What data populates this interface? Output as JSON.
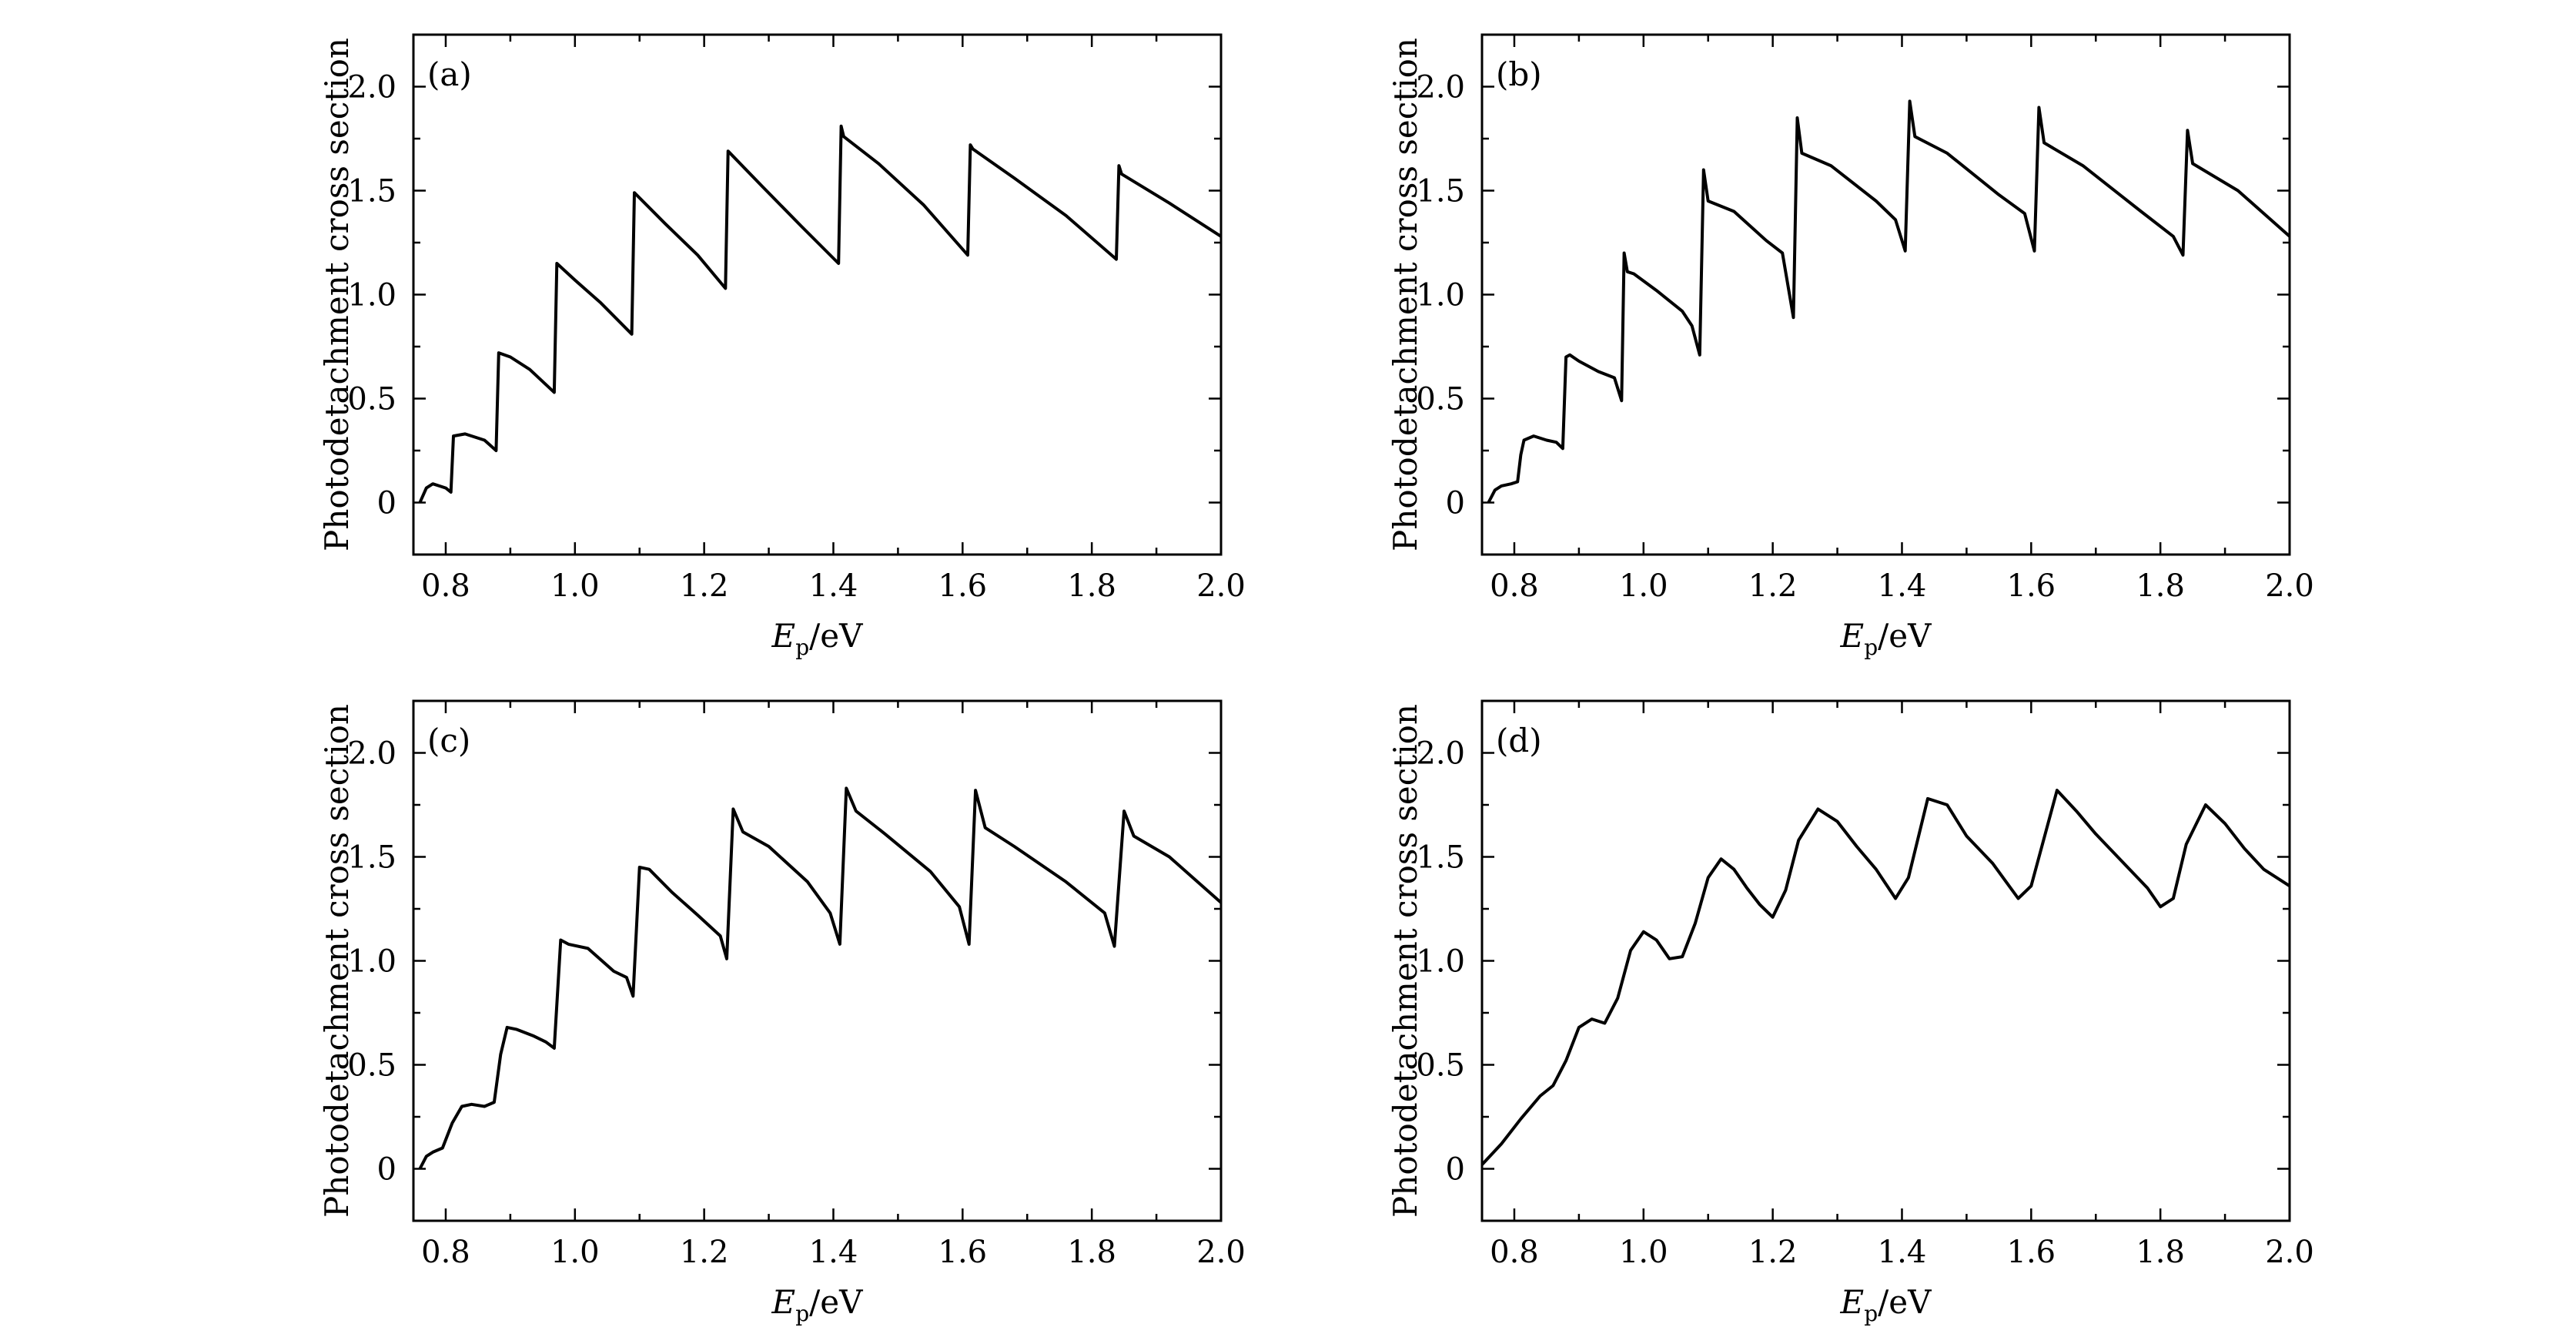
{
  "figure": {
    "ylabel": "Photodetachment cross section",
    "xlabel_main": "E",
    "xlabel_sub": "p",
    "xlabel_unit": "/eV"
  },
  "chart_data": [
    {
      "type": "line",
      "panel_label": "(a)",
      "xlim": [
        0.75,
        2.0
      ],
      "ylim": [
        -0.25,
        2.25
      ],
      "xticks": [
        "0.8",
        "1.0",
        "1.2",
        "1.4",
        "1.6",
        "1.8",
        "2.0"
      ],
      "yticks": [
        "0",
        "0.5",
        "1.0",
        "1.5",
        "2.0"
      ],
      "series": [
        {
          "name": "(a)",
          "x": [
            0.76,
            0.77,
            0.78,
            0.79,
            0.8,
            0.808,
            0.812,
            0.83,
            0.86,
            0.878,
            0.882,
            0.9,
            0.93,
            0.968,
            0.972,
            1.0,
            1.04,
            1.088,
            1.092,
            1.14,
            1.19,
            1.233,
            1.237,
            1.29,
            1.35,
            1.408,
            1.412,
            1.416,
            1.47,
            1.54,
            1.608,
            1.612,
            1.616,
            1.68,
            1.76,
            1.838,
            1.842,
            1.846,
            1.92,
            2.0
          ],
          "y": [
            0.0,
            0.07,
            0.09,
            0.08,
            0.07,
            0.05,
            0.32,
            0.33,
            0.3,
            0.25,
            0.72,
            0.7,
            0.64,
            0.53,
            1.15,
            1.07,
            0.96,
            0.81,
            1.49,
            1.34,
            1.19,
            1.03,
            1.69,
            1.52,
            1.33,
            1.15,
            1.81,
            1.76,
            1.63,
            1.43,
            1.19,
            1.72,
            1.7,
            1.56,
            1.38,
            1.17,
            1.62,
            1.58,
            1.44,
            1.28
          ]
        }
      ]
    },
    {
      "type": "line",
      "panel_label": "(b)",
      "xlim": [
        0.75,
        2.0
      ],
      "ylim": [
        -0.25,
        2.25
      ],
      "xticks": [
        "0.8",
        "1.0",
        "1.2",
        "1.4",
        "1.6",
        "1.8",
        "2.0"
      ],
      "yticks": [
        "0",
        "0.5",
        "1.0",
        "1.5",
        "2.0"
      ],
      "series": [
        {
          "name": "(b)",
          "x": [
            0.76,
            0.77,
            0.78,
            0.795,
            0.805,
            0.81,
            0.815,
            0.83,
            0.85,
            0.865,
            0.875,
            0.88,
            0.886,
            0.9,
            0.93,
            0.955,
            0.966,
            0.97,
            0.975,
            0.985,
            1.02,
            1.06,
            1.075,
            1.087,
            1.093,
            1.1,
            1.14,
            1.19,
            1.215,
            1.232,
            1.238,
            1.245,
            1.29,
            1.36,
            1.39,
            1.405,
            1.412,
            1.42,
            1.47,
            1.55,
            1.59,
            1.605,
            1.612,
            1.62,
            1.68,
            1.77,
            1.82,
            1.835,
            1.842,
            1.85,
            1.92,
            2.0
          ],
          "y": [
            0.0,
            0.06,
            0.08,
            0.09,
            0.1,
            0.23,
            0.3,
            0.32,
            0.3,
            0.29,
            0.26,
            0.7,
            0.71,
            0.68,
            0.63,
            0.6,
            0.49,
            1.2,
            1.11,
            1.1,
            1.02,
            0.92,
            0.85,
            0.71,
            1.6,
            1.45,
            1.4,
            1.26,
            1.2,
            0.89,
            1.85,
            1.68,
            1.62,
            1.45,
            1.36,
            1.21,
            1.93,
            1.76,
            1.68,
            1.48,
            1.39,
            1.21,
            1.9,
            1.73,
            1.62,
            1.4,
            1.28,
            1.19,
            1.79,
            1.63,
            1.5,
            1.28
          ]
        }
      ]
    },
    {
      "type": "line",
      "panel_label": "(c)",
      "xlim": [
        0.75,
        2.0
      ],
      "ylim": [
        -0.25,
        2.25
      ],
      "xticks": [
        "0.8",
        "1.0",
        "1.2",
        "1.4",
        "1.6",
        "1.8",
        "2.0"
      ],
      "yticks": [
        "0",
        "0.5",
        "1.0",
        "1.5",
        "2.0"
      ],
      "series": [
        {
          "name": "(c)",
          "x": [
            0.76,
            0.77,
            0.78,
            0.795,
            0.81,
            0.825,
            0.84,
            0.86,
            0.875,
            0.885,
            0.895,
            0.91,
            0.935,
            0.955,
            0.968,
            0.978,
            0.99,
            1.02,
            1.06,
            1.08,
            1.09,
            1.1,
            1.115,
            1.15,
            1.19,
            1.225,
            1.235,
            1.245,
            1.26,
            1.3,
            1.36,
            1.395,
            1.41,
            1.42,
            1.435,
            1.48,
            1.55,
            1.595,
            1.61,
            1.62,
            1.635,
            1.68,
            1.76,
            1.82,
            1.835,
            1.85,
            1.865,
            1.92,
            2.0
          ],
          "y": [
            0.0,
            0.06,
            0.08,
            0.1,
            0.22,
            0.3,
            0.31,
            0.3,
            0.32,
            0.55,
            0.68,
            0.67,
            0.64,
            0.61,
            0.58,
            1.1,
            1.08,
            1.06,
            0.95,
            0.92,
            0.83,
            1.45,
            1.44,
            1.33,
            1.22,
            1.12,
            1.01,
            1.73,
            1.62,
            1.55,
            1.38,
            1.23,
            1.08,
            1.83,
            1.72,
            1.61,
            1.43,
            1.26,
            1.08,
            1.82,
            1.64,
            1.55,
            1.38,
            1.23,
            1.07,
            1.72,
            1.6,
            1.5,
            1.28
          ]
        }
      ]
    },
    {
      "type": "line",
      "panel_label": "(d)",
      "xlim": [
        0.75,
        2.0
      ],
      "ylim": [
        -0.25,
        2.25
      ],
      "xticks": [
        "0.8",
        "1.0",
        "1.2",
        "1.4",
        "1.6",
        "1.8",
        "2.0"
      ],
      "yticks": [
        "0",
        "0.5",
        "1.0",
        "1.5",
        "2.0"
      ],
      "series": [
        {
          "name": "(d)",
          "x": [
            0.75,
            0.78,
            0.81,
            0.84,
            0.86,
            0.88,
            0.9,
            0.92,
            0.94,
            0.96,
            0.98,
            1.0,
            1.02,
            1.04,
            1.06,
            1.08,
            1.1,
            1.12,
            1.14,
            1.16,
            1.18,
            1.2,
            1.22,
            1.24,
            1.27,
            1.3,
            1.33,
            1.36,
            1.39,
            1.41,
            1.44,
            1.47,
            1.5,
            1.54,
            1.58,
            1.6,
            1.64,
            1.67,
            1.7,
            1.74,
            1.78,
            1.8,
            1.82,
            1.84,
            1.87,
            1.9,
            1.93,
            1.96,
            2.0
          ],
          "y": [
            0.02,
            0.12,
            0.24,
            0.35,
            0.4,
            0.52,
            0.68,
            0.72,
            0.7,
            0.82,
            1.05,
            1.14,
            1.1,
            1.01,
            1.02,
            1.18,
            1.4,
            1.49,
            1.44,
            1.35,
            1.27,
            1.21,
            1.34,
            1.58,
            1.73,
            1.67,
            1.55,
            1.44,
            1.3,
            1.4,
            1.78,
            1.75,
            1.6,
            1.47,
            1.3,
            1.36,
            1.82,
            1.72,
            1.61,
            1.48,
            1.35,
            1.26,
            1.3,
            1.56,
            1.75,
            1.66,
            1.54,
            1.44,
            1.36
          ]
        }
      ]
    }
  ]
}
